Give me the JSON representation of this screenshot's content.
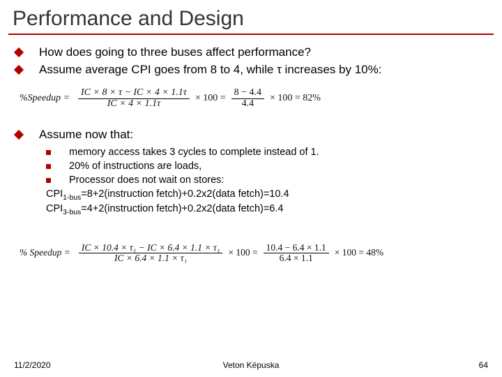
{
  "title": "Performance and Design",
  "bullets": {
    "b1": "How does going to three buses affect performance?",
    "b2": "Assume average CPI goes from 8 to 4, while τ increases by 10%:",
    "b3": "Assume now that:"
  },
  "subs": {
    "s1": "memory access takes 3 cycles to complete instead of 1.",
    "s2": "20% of instructions are loads,",
    "s3": "Processor does not wait on stores:"
  },
  "cpi": {
    "line1_pre": "CPI",
    "line1_sub": "1-bus",
    "line1_rest": "=8+2(instruction fetch)+0.2x2(data fetch)=10.4",
    "line2_pre": "CPI",
    "line2_sub": "3-bus",
    "line2_rest": "=4+2(instruction fetch)+0.2x2(data fetch)=6.4"
  },
  "eq1": {
    "label": "%Speedup =",
    "num1": "IC × 8 × τ − IC × 4 × 1.1τ",
    "den1": "IC × 4 × 1.1τ",
    "mid": "× 100 =",
    "num2": "8 − 4.4",
    "den2": "4.4",
    "tail": "× 100 = 82%"
  },
  "eq2": {
    "label": "% Speedup =",
    "num1": "IC × 10.4 × τ₁ − IC × 6.4 × 1.1 × τ₁",
    "den1": "IC × 6.4 × 1.1 × τ₁",
    "mid": "× 100 =",
    "num2": "10.4 − 6.4 × 1.1",
    "den2": "6.4 × 1.1",
    "tail": "× 100 = 48%"
  },
  "footer": {
    "date": "11/2/2020",
    "author": "Veton Këpuska",
    "page": "64"
  },
  "colors": {
    "accent": "#b00000",
    "text": "#000000",
    "bg": "#ffffff"
  }
}
